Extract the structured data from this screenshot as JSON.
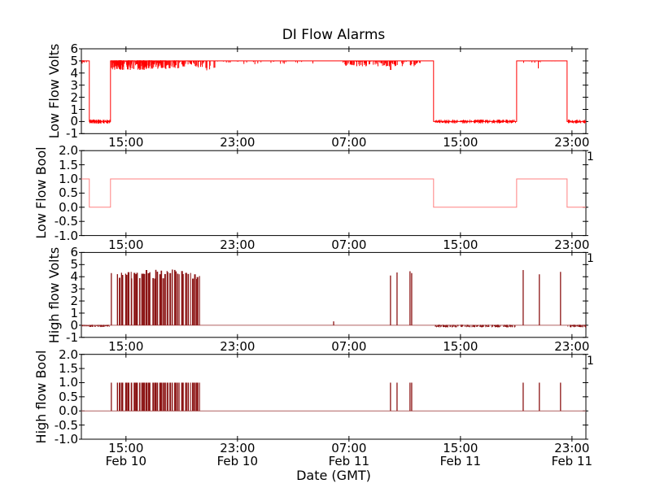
{
  "figure": {
    "title": "DI Flow Alarms",
    "xlabel": "Date (GMT)",
    "background": "#ffffff",
    "frame_color": "#000000"
  },
  "colors": {
    "low_flow": "#ff0000",
    "low_flow_bool": "#ff8080",
    "high_flow": "#8b1414",
    "high_flow_baseline": "#b06060"
  },
  "x_axis": {
    "xlabel": "Date (GMT)",
    "unit": "hours since Feb 10 00:00 GMT",
    "xlim": [
      11.8,
      48.0
    ],
    "tick_values": [
      15,
      23,
      31,
      39,
      47
    ],
    "tick_labels": [
      "15:00",
      "23:00",
      "07:00",
      "15:00",
      "23:00"
    ],
    "date_labels": [
      "Feb 10",
      "Feb 10",
      "Feb 11",
      "Feb 11",
      "Feb 11"
    ]
  },
  "chart_data": [
    {
      "type": "line",
      "title": "DI Flow Alarms",
      "ylabel": "Low Flow Volts",
      "ylim": [
        -1,
        6
      ],
      "ytick_values": [
        6,
        5,
        4,
        3,
        2,
        1,
        0,
        -1
      ],
      "ytick_labels": [
        "6",
        "5",
        "4",
        "3",
        "2",
        "1",
        "0",
        "-1"
      ],
      "right_label": "",
      "color": "#ff0000",
      "steps": [
        [
          11.8,
          5
        ],
        [
          12.37,
          0
        ],
        [
          13.89,
          5
        ],
        [
          37.07,
          0
        ],
        [
          43.03,
          5
        ],
        [
          46.65,
          0
        ],
        [
          48,
          0
        ]
      ],
      "noise": [
        {
          "t0": 11.82,
          "t1": 12.35,
          "base": 5,
          "lo": 4.75,
          "hi": 5.05,
          "n": 8,
          "seed": 11
        },
        {
          "t0": 12.4,
          "t1": 13.85,
          "base": 0,
          "lo": -0.17,
          "hi": 0.17,
          "n": 70,
          "seed": 12
        },
        {
          "t0": 13.95,
          "t1": 16.5,
          "base": 5,
          "lo": 4.25,
          "hi": 5.05,
          "n": 150,
          "seed": 13
        },
        {
          "t0": 16.5,
          "t1": 18.8,
          "base": 5,
          "lo": 4.3,
          "hi": 5.05,
          "n": 90,
          "seed": 14
        },
        {
          "t0": 18.8,
          "t1": 20.6,
          "base": 5,
          "lo": 4.45,
          "hi": 5.03,
          "n": 40,
          "seed": 15
        },
        {
          "t0": 20.6,
          "t1": 21.4,
          "base": 5,
          "lo": 4.0,
          "hi": 5.02,
          "n": 10,
          "seed": 16
        },
        {
          "t0": 21.5,
          "t1": 30.4,
          "base": 5,
          "lo": 4.72,
          "hi": 5.02,
          "n": 26,
          "seed": 17
        },
        {
          "t0": 30.5,
          "t1": 36.2,
          "base": 5,
          "lo": 4.55,
          "hi": 5.03,
          "n": 110,
          "seed": 18
        },
        {
          "t0": 33.9,
          "t1": 34.2,
          "base": 5,
          "lo": 4.1,
          "hi": 5.0,
          "n": 3,
          "seed": 19
        },
        {
          "t0": 37.15,
          "t1": 42.95,
          "base": 0,
          "lo": -0.16,
          "hi": 0.16,
          "n": 150,
          "seed": 20
        },
        {
          "t0": 43.1,
          "t1": 46.5,
          "base": 5,
          "lo": 4.8,
          "hi": 5.02,
          "n": 10,
          "seed": 21
        },
        {
          "t0": 44.55,
          "t1": 44.7,
          "base": 5,
          "lo": 4.3,
          "hi": 5.0,
          "n": 2,
          "seed": 22
        },
        {
          "t0": 46.7,
          "t1": 47.98,
          "base": 0,
          "lo": -0.16,
          "hi": 0.16,
          "n": 45,
          "seed": 23
        }
      ],
      "spikes": [],
      "clusters": []
    },
    {
      "type": "line",
      "ylabel": "Low Flow Bool",
      "ylim": [
        -1,
        2
      ],
      "ytick_values": [
        2,
        1.5,
        1,
        0.5,
        0,
        -0.5,
        -1
      ],
      "ytick_labels": [
        "2.0",
        "1.5",
        "1.0",
        "0.5",
        "0.0",
        "-0.5",
        "-1.0"
      ],
      "right_label": "1",
      "color": "#ff8080",
      "steps": [
        [
          11.8,
          1
        ],
        [
          12.37,
          0
        ],
        [
          13.89,
          1
        ],
        [
          37.07,
          0
        ],
        [
          43.03,
          1
        ],
        [
          46.65,
          0
        ],
        [
          48,
          0
        ]
      ],
      "noise": [],
      "spikes": [],
      "clusters": []
    },
    {
      "type": "line",
      "ylabel": "High flow Volts",
      "ylim": [
        -1,
        6
      ],
      "ytick_values": [
        6,
        5,
        4,
        3,
        2,
        1,
        0,
        -1
      ],
      "ytick_labels": [
        "6",
        "5",
        "4",
        "3",
        "2",
        "1",
        "0",
        "-1"
      ],
      "right_label": "1",
      "color": "#8b1414",
      "baseline_color": "#b06060",
      "steps": [
        [
          11.8,
          0
        ],
        [
          48,
          0
        ]
      ],
      "noise": [
        {
          "t0": 11.82,
          "t1": 12.3,
          "base": -0.04,
          "lo": -0.1,
          "hi": 0.02,
          "n": 14,
          "seed": 31
        },
        {
          "t0": 12.35,
          "t1": 13.9,
          "base": -0.06,
          "lo": -0.15,
          "hi": 0.04,
          "n": 50,
          "seed": 32
        },
        {
          "t0": 37.15,
          "t1": 42.95,
          "base": -0.07,
          "lo": -0.18,
          "hi": 0.05,
          "n": 150,
          "seed": 33
        },
        {
          "t0": 46.7,
          "t1": 47.98,
          "base": -0.07,
          "lo": -0.18,
          "hi": 0.05,
          "n": 45,
          "seed": 34
        }
      ],
      "spikes": [
        [
          13.95,
          4.3
        ],
        [
          29.9,
          0.32
        ],
        [
          33.98,
          4.1
        ],
        [
          34.45,
          4.35
        ],
        [
          35.38,
          4.45
        ],
        [
          35.5,
          4.3
        ],
        [
          43.5,
          4.55
        ],
        [
          44.66,
          4.2
        ],
        [
          46.18,
          4.4
        ]
      ],
      "clusters": [
        {
          "t0": 14.35,
          "t1": 20.35,
          "n": 46,
          "hmin": 3.75,
          "hmax": 4.6,
          "seed": 77
        }
      ]
    },
    {
      "type": "line",
      "ylabel": "High flow Bool",
      "ylim": [
        -1,
        2
      ],
      "ytick_values": [
        2,
        1.5,
        1,
        0.5,
        0,
        -0.5,
        -1
      ],
      "ytick_labels": [
        "2.0",
        "1.5",
        "1.0",
        "0.5",
        "0.0",
        "-0.5",
        "-1.0"
      ],
      "right_label": "1",
      "color": "#8b1414",
      "baseline_color": "#b06060",
      "steps": [
        [
          11.8,
          0
        ],
        [
          48,
          0
        ]
      ],
      "noise": [],
      "spikes": [
        [
          13.95,
          1
        ],
        [
          33.98,
          1
        ],
        [
          34.45,
          1
        ],
        [
          35.38,
          1
        ],
        [
          35.5,
          1
        ],
        [
          43.5,
          1
        ],
        [
          44.66,
          1
        ],
        [
          46.18,
          1
        ]
      ],
      "clusters": [
        {
          "t0": 14.35,
          "t1": 20.35,
          "n": 46,
          "hmin": 1,
          "hmax": 1,
          "seed": 77
        }
      ]
    }
  ]
}
